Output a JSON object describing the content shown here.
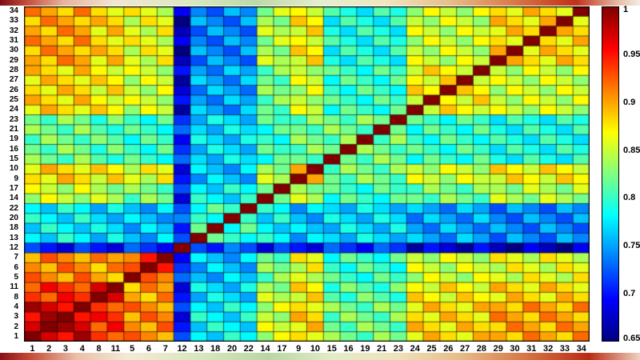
{
  "figure": {
    "background": "#ffffff",
    "kind": "correlation-matrix-heatmap"
  },
  "chart_data": {
    "type": "heatmap",
    "title": "",
    "xlabel": "",
    "ylabel": "",
    "colormap": "jet",
    "grid": true,
    "legend_position": "colorbar-right",
    "color_scale": {
      "min": 0.65,
      "max": 1.0
    },
    "colormap_stops": [
      {
        "color": "#000080",
        "pos": 0.0
      },
      {
        "color": "#0000ff",
        "pos": 0.125
      },
      {
        "color": "#00ffff",
        "pos": 0.375
      },
      {
        "color": "#ffff00",
        "pos": 0.625
      },
      {
        "color": "#ff0000",
        "pos": 0.875
      },
      {
        "color": "#800000",
        "pos": 1.0
      }
    ],
    "colorbar_ticks": [
      {
        "label": "1",
        "value": 1.0
      },
      {
        "label": "0.95",
        "value": 0.95
      },
      {
        "label": "0.9",
        "value": 0.9
      },
      {
        "label": "0.85",
        "value": 0.85
      },
      {
        "label": "0.8",
        "value": 0.8
      },
      {
        "label": "0.75",
        "value": 0.75
      },
      {
        "label": "0.7",
        "value": 0.7
      },
      {
        "label": "0.65",
        "value": 0.65
      }
    ],
    "x_tick_labels": [
      "1",
      "2",
      "3",
      "4",
      "8",
      "11",
      "5",
      "6",
      "7",
      "12",
      "13",
      "18",
      "20",
      "22",
      "14",
      "17",
      "9",
      "10",
      "15",
      "16",
      "19",
      "21",
      "23",
      "24",
      "25",
      "26",
      "27",
      "28",
      "29",
      "30",
      "31",
      "32",
      "33",
      "34"
    ],
    "y_tick_labels_top_to_bottom": [
      "34",
      "33",
      "32",
      "31",
      "30",
      "29",
      "28",
      "27",
      "26",
      "25",
      "24",
      "23",
      "21",
      "19",
      "16",
      "15",
      "10",
      "9",
      "17",
      "14",
      "22",
      "20",
      "18",
      "13",
      "12",
      "7",
      "6",
      "5",
      "11",
      "8",
      "4",
      "3",
      "2",
      "1"
    ],
    "matrix_row_order": "rows indexed in x_tick_labels order; row 0 is the bottom display row, diagonal runs bottom-left to top-right",
    "matrix": [
      [
        1,
        0.97,
        0.95,
        0.99,
        0.94,
        0.92,
        0.93,
        0.91,
        0.89,
        0.72,
        0.78,
        0.76,
        0.8,
        0.78,
        0.83,
        0.87,
        0.88,
        0.86,
        0.84,
        0.82,
        0.8,
        0.84,
        0.82,
        0.86,
        0.9,
        0.88,
        0.86,
        0.9,
        0.9,
        0.88,
        0.92,
        0.9,
        0.88,
        0.92
      ],
      [
        0.97,
        1,
        0.99,
        0.97,
        0.92,
        0.96,
        0.91,
        0.89,
        0.93,
        0.7,
        0.76,
        0.8,
        0.78,
        0.76,
        0.87,
        0.85,
        0.86,
        0.9,
        0.82,
        0.8,
        0.84,
        0.82,
        0.8,
        0.9,
        0.88,
        0.86,
        0.9,
        0.88,
        0.88,
        0.92,
        0.9,
        0.88,
        0.92,
        0.9
      ],
      [
        0.95,
        0.99,
        1,
        0.95,
        0.96,
        0.94,
        0.89,
        0.93,
        0.91,
        0.68,
        0.8,
        0.78,
        0.76,
        0.8,
        0.85,
        0.83,
        0.9,
        0.88,
        0.8,
        0.84,
        0.82,
        0.8,
        0.84,
        0.88,
        0.86,
        0.9,
        0.88,
        0.86,
        0.92,
        0.9,
        0.88,
        0.92,
        0.9,
        0.88
      ],
      [
        0.99,
        0.97,
        0.95,
        1,
        0.94,
        0.92,
        0.93,
        0.91,
        0.89,
        0.72,
        0.78,
        0.76,
        0.8,
        0.78,
        0.83,
        0.87,
        0.88,
        0.86,
        0.84,
        0.82,
        0.8,
        0.84,
        0.82,
        0.86,
        0.9,
        0.88,
        0.86,
        0.9,
        0.9,
        0.88,
        0.92,
        0.9,
        0.88,
        0.92
      ],
      [
        0.94,
        0.92,
        0.96,
        0.94,
        1,
        0.97,
        0.9,
        0.88,
        0.92,
        0.7,
        0.75,
        0.79,
        0.77,
        0.75,
        0.86,
        0.84,
        0.85,
        0.89,
        0.81,
        0.79,
        0.83,
        0.81,
        0.79,
        0.89,
        0.87,
        0.85,
        0.89,
        0.87,
        0.86,
        0.9,
        0.88,
        0.86,
        0.9,
        0.88
      ],
      [
        0.92,
        0.96,
        0.94,
        0.92,
        0.97,
        1,
        0.88,
        0.92,
        0.9,
        0.68,
        0.79,
        0.77,
        0.75,
        0.79,
        0.84,
        0.82,
        0.89,
        0.87,
        0.79,
        0.83,
        0.81,
        0.79,
        0.83,
        0.87,
        0.85,
        0.89,
        0.87,
        0.85,
        0.9,
        0.88,
        0.86,
        0.9,
        0.88,
        0.86
      ],
      [
        0.93,
        0.91,
        0.89,
        0.93,
        0.9,
        0.88,
        1,
        0.93,
        0.91,
        0.73,
        0.76,
        0.74,
        0.78,
        0.76,
        0.8,
        0.84,
        0.86,
        0.84,
        0.82,
        0.8,
        0.78,
        0.82,
        0.8,
        0.83,
        0.87,
        0.85,
        0.83,
        0.87,
        0.86,
        0.84,
        0.88,
        0.86,
        0.84,
        0.88
      ],
      [
        0.91,
        0.89,
        0.93,
        0.91,
        0.88,
        0.92,
        0.93,
        1,
        0.95,
        0.71,
        0.74,
        0.78,
        0.76,
        0.74,
        0.84,
        0.82,
        0.84,
        0.88,
        0.8,
        0.78,
        0.82,
        0.8,
        0.78,
        0.87,
        0.85,
        0.83,
        0.87,
        0.85,
        0.84,
        0.88,
        0.86,
        0.84,
        0.88,
        0.86
      ],
      [
        0.89,
        0.93,
        0.91,
        0.89,
        0.92,
        0.9,
        0.91,
        0.95,
        1,
        0.69,
        0.78,
        0.76,
        0.74,
        0.78,
        0.82,
        0.8,
        0.88,
        0.86,
        0.78,
        0.82,
        0.8,
        0.78,
        0.82,
        0.85,
        0.83,
        0.87,
        0.85,
        0.83,
        0.88,
        0.86,
        0.84,
        0.88,
        0.86,
        0.84
      ],
      [
        0.72,
        0.7,
        0.68,
        0.72,
        0.7,
        0.68,
        0.73,
        0.71,
        0.69,
        1,
        0.72,
        0.7,
        0.74,
        0.72,
        0.68,
        0.72,
        0.7,
        0.68,
        0.73,
        0.71,
        0.69,
        0.73,
        0.71,
        0.66,
        0.7,
        0.68,
        0.66,
        0.7,
        0.67,
        0.65,
        0.69,
        0.67,
        0.65,
        0.69
      ],
      [
        0.78,
        0.76,
        0.8,
        0.78,
        0.75,
        0.79,
        0.76,
        0.74,
        0.78,
        0.72,
        1,
        0.82,
        0.8,
        0.78,
        0.8,
        0.78,
        0.74,
        0.78,
        0.77,
        0.75,
        0.79,
        0.77,
        0.75,
        0.77,
        0.75,
        0.73,
        0.77,
        0.75,
        0.72,
        0.76,
        0.74,
        0.72,
        0.76,
        0.74
      ],
      [
        0.76,
        0.8,
        0.78,
        0.76,
        0.79,
        0.77,
        0.74,
        0.78,
        0.76,
        0.7,
        0.82,
        1,
        0.78,
        0.82,
        0.78,
        0.76,
        0.78,
        0.76,
        0.75,
        0.79,
        0.77,
        0.75,
        0.79,
        0.75,
        0.73,
        0.77,
        0.75,
        0.73,
        0.76,
        0.74,
        0.72,
        0.76,
        0.74,
        0.72
      ],
      [
        0.8,
        0.78,
        0.76,
        0.8,
        0.77,
        0.75,
        0.78,
        0.76,
        0.74,
        0.74,
        0.8,
        0.78,
        1,
        0.8,
        0.76,
        0.8,
        0.76,
        0.74,
        0.79,
        0.77,
        0.75,
        0.79,
        0.77,
        0.73,
        0.77,
        0.75,
        0.73,
        0.77,
        0.74,
        0.72,
        0.76,
        0.74,
        0.72,
        0.76
      ],
      [
        0.78,
        0.76,
        0.8,
        0.78,
        0.75,
        0.79,
        0.76,
        0.74,
        0.78,
        0.72,
        0.78,
        0.82,
        0.8,
        1,
        0.8,
        0.78,
        0.74,
        0.78,
        0.77,
        0.75,
        0.79,
        0.77,
        0.75,
        0.77,
        0.75,
        0.73,
        0.77,
        0.75,
        0.72,
        0.76,
        0.74,
        0.72,
        0.76,
        0.74
      ],
      [
        0.83,
        0.87,
        0.85,
        0.83,
        0.86,
        0.84,
        0.8,
        0.84,
        0.82,
        0.68,
        0.8,
        0.78,
        0.76,
        0.8,
        1,
        0.82,
        0.86,
        0.84,
        0.78,
        0.82,
        0.8,
        0.78,
        0.82,
        0.82,
        0.8,
        0.84,
        0.82,
        0.8,
        0.86,
        0.84,
        0.82,
        0.86,
        0.84,
        0.82
      ],
      [
        0.87,
        0.85,
        0.83,
        0.87,
        0.84,
        0.82,
        0.84,
        0.82,
        0.8,
        0.72,
        0.78,
        0.76,
        0.8,
        0.78,
        0.82,
        1,
        0.84,
        0.82,
        0.82,
        0.8,
        0.78,
        0.82,
        0.8,
        0.8,
        0.84,
        0.82,
        0.8,
        0.84,
        0.84,
        0.82,
        0.86,
        0.84,
        0.82,
        0.86
      ],
      [
        0.88,
        0.86,
        0.9,
        0.88,
        0.85,
        0.89,
        0.86,
        0.84,
        0.88,
        0.7,
        0.74,
        0.78,
        0.76,
        0.74,
        0.86,
        0.84,
        1,
        0.9,
        0.82,
        0.8,
        0.84,
        0.82,
        0.8,
        0.87,
        0.85,
        0.83,
        0.87,
        0.85,
        0.85,
        0.89,
        0.87,
        0.85,
        0.89,
        0.87
      ],
      [
        0.86,
        0.9,
        0.88,
        0.86,
        0.89,
        0.87,
        0.84,
        0.88,
        0.86,
        0.68,
        0.78,
        0.76,
        0.74,
        0.78,
        0.84,
        0.82,
        0.9,
        1,
        0.8,
        0.84,
        0.82,
        0.8,
        0.84,
        0.85,
        0.83,
        0.87,
        0.85,
        0.83,
        0.89,
        0.87,
        0.85,
        0.89,
        0.87,
        0.85
      ],
      [
        0.84,
        0.82,
        0.8,
        0.84,
        0.81,
        0.79,
        0.82,
        0.8,
        0.78,
        0.73,
        0.77,
        0.75,
        0.79,
        0.77,
        0.78,
        0.82,
        0.82,
        0.8,
        1,
        0.82,
        0.8,
        0.84,
        0.82,
        0.78,
        0.82,
        0.8,
        0.78,
        0.82,
        0.79,
        0.77,
        0.81,
        0.79,
        0.77,
        0.81
      ],
      [
        0.82,
        0.8,
        0.84,
        0.82,
        0.79,
        0.83,
        0.8,
        0.78,
        0.82,
        0.71,
        0.75,
        0.79,
        0.77,
        0.75,
        0.82,
        0.8,
        0.8,
        0.84,
        0.82,
        1,
        0.84,
        0.82,
        0.8,
        0.82,
        0.8,
        0.78,
        0.82,
        0.8,
        0.77,
        0.81,
        0.79,
        0.77,
        0.81,
        0.79
      ],
      [
        0.8,
        0.84,
        0.82,
        0.8,
        0.83,
        0.81,
        0.78,
        0.82,
        0.8,
        0.69,
        0.79,
        0.77,
        0.75,
        0.79,
        0.8,
        0.78,
        0.84,
        0.82,
        0.8,
        0.84,
        1,
        0.8,
        0.84,
        0.8,
        0.78,
        0.82,
        0.8,
        0.78,
        0.81,
        0.79,
        0.77,
        0.81,
        0.79,
        0.77
      ],
      [
        0.84,
        0.82,
        0.8,
        0.84,
        0.81,
        0.79,
        0.82,
        0.8,
        0.78,
        0.73,
        0.77,
        0.75,
        0.79,
        0.77,
        0.78,
        0.82,
        0.82,
        0.8,
        0.84,
        0.82,
        0.8,
        1,
        0.82,
        0.78,
        0.82,
        0.8,
        0.78,
        0.82,
        0.79,
        0.77,
        0.81,
        0.79,
        0.77,
        0.81
      ],
      [
        0.82,
        0.8,
        0.84,
        0.82,
        0.79,
        0.83,
        0.8,
        0.78,
        0.82,
        0.71,
        0.75,
        0.79,
        0.77,
        0.75,
        0.82,
        0.8,
        0.8,
        0.84,
        0.82,
        0.8,
        0.84,
        0.82,
        1,
        0.82,
        0.8,
        0.78,
        0.82,
        0.8,
        0.77,
        0.81,
        0.79,
        0.77,
        0.81,
        0.79
      ],
      [
        0.86,
        0.9,
        0.88,
        0.86,
        0.89,
        0.87,
        0.83,
        0.87,
        0.85,
        0.66,
        0.77,
        0.75,
        0.73,
        0.77,
        0.82,
        0.8,
        0.87,
        0.85,
        0.78,
        0.82,
        0.8,
        0.78,
        0.82,
        1,
        0.85,
        0.89,
        0.87,
        0.85,
        0.87,
        0.85,
        0.83,
        0.87,
        0.85,
        0.83
      ],
      [
        0.9,
        0.88,
        0.86,
        0.9,
        0.87,
        0.85,
        0.87,
        0.85,
        0.83,
        0.7,
        0.75,
        0.73,
        0.77,
        0.75,
        0.8,
        0.84,
        0.85,
        0.83,
        0.82,
        0.8,
        0.78,
        0.82,
        0.8,
        0.85,
        1,
        0.87,
        0.85,
        0.89,
        0.85,
        0.83,
        0.87,
        0.85,
        0.83,
        0.87
      ],
      [
        0.88,
        0.86,
        0.9,
        0.88,
        0.85,
        0.89,
        0.85,
        0.83,
        0.87,
        0.68,
        0.73,
        0.77,
        0.75,
        0.73,
        0.84,
        0.82,
        0.83,
        0.87,
        0.8,
        0.78,
        0.82,
        0.8,
        0.78,
        0.89,
        0.87,
        1,
        0.89,
        0.87,
        0.83,
        0.87,
        0.85,
        0.83,
        0.87,
        0.85
      ],
      [
        0.86,
        0.9,
        0.88,
        0.86,
        0.89,
        0.87,
        0.83,
        0.87,
        0.85,
        0.66,
        0.77,
        0.75,
        0.73,
        0.77,
        0.82,
        0.8,
        0.87,
        0.85,
        0.78,
        0.82,
        0.8,
        0.78,
        0.82,
        0.87,
        0.85,
        0.89,
        1,
        0.85,
        0.87,
        0.85,
        0.83,
        0.87,
        0.85,
        0.83
      ],
      [
        0.9,
        0.88,
        0.86,
        0.9,
        0.87,
        0.85,
        0.87,
        0.85,
        0.83,
        0.7,
        0.75,
        0.73,
        0.77,
        0.75,
        0.8,
        0.84,
        0.85,
        0.83,
        0.82,
        0.8,
        0.78,
        0.82,
        0.8,
        0.85,
        0.89,
        0.87,
        0.85,
        1,
        0.85,
        0.83,
        0.87,
        0.85,
        0.83,
        0.87
      ],
      [
        0.9,
        0.88,
        0.92,
        0.9,
        0.86,
        0.9,
        0.86,
        0.84,
        0.88,
        0.67,
        0.72,
        0.76,
        0.74,
        0.72,
        0.86,
        0.84,
        0.85,
        0.89,
        0.79,
        0.77,
        0.81,
        0.79,
        0.77,
        0.87,
        0.85,
        0.83,
        0.87,
        0.85,
        1,
        0.9,
        0.88,
        0.86,
        0.9,
        0.88
      ],
      [
        0.88,
        0.92,
        0.9,
        0.88,
        0.9,
        0.88,
        0.84,
        0.88,
        0.86,
        0.65,
        0.76,
        0.74,
        0.72,
        0.76,
        0.84,
        0.82,
        0.89,
        0.87,
        0.77,
        0.81,
        0.79,
        0.77,
        0.81,
        0.85,
        0.83,
        0.87,
        0.85,
        0.83,
        0.9,
        1,
        0.86,
        0.9,
        0.88,
        0.86
      ],
      [
        0.92,
        0.9,
        0.88,
        0.92,
        0.88,
        0.86,
        0.88,
        0.86,
        0.84,
        0.69,
        0.74,
        0.72,
        0.76,
        0.74,
        0.82,
        0.86,
        0.87,
        0.85,
        0.81,
        0.79,
        0.77,
        0.81,
        0.79,
        0.83,
        0.87,
        0.85,
        0.83,
        0.87,
        0.88,
        0.86,
        1,
        0.88,
        0.86,
        0.9
      ],
      [
        0.9,
        0.88,
        0.92,
        0.9,
        0.86,
        0.9,
        0.86,
        0.84,
        0.88,
        0.67,
        0.72,
        0.76,
        0.74,
        0.72,
        0.86,
        0.84,
        0.85,
        0.89,
        0.79,
        0.77,
        0.81,
        0.79,
        0.77,
        0.87,
        0.85,
        0.83,
        0.87,
        0.85,
        0.86,
        0.9,
        0.88,
        1,
        0.9,
        0.88
      ],
      [
        0.88,
        0.92,
        0.9,
        0.88,
        0.9,
        0.88,
        0.84,
        0.88,
        0.86,
        0.65,
        0.76,
        0.74,
        0.72,
        0.76,
        0.84,
        0.82,
        0.89,
        0.87,
        0.77,
        0.81,
        0.79,
        0.77,
        0.81,
        0.85,
        0.83,
        0.87,
        0.85,
        0.83,
        0.9,
        0.88,
        0.86,
        0.9,
        1,
        0.86
      ],
      [
        0.92,
        0.9,
        0.88,
        0.92,
        0.88,
        0.86,
        0.88,
        0.86,
        0.84,
        0.69,
        0.74,
        0.72,
        0.76,
        0.74,
        0.82,
        0.86,
        0.87,
        0.85,
        0.81,
        0.79,
        0.77,
        0.81,
        0.79,
        0.83,
        0.87,
        0.85,
        0.83,
        0.87,
        0.88,
        0.86,
        0.9,
        0.88,
        0.86,
        1
      ]
    ]
  }
}
